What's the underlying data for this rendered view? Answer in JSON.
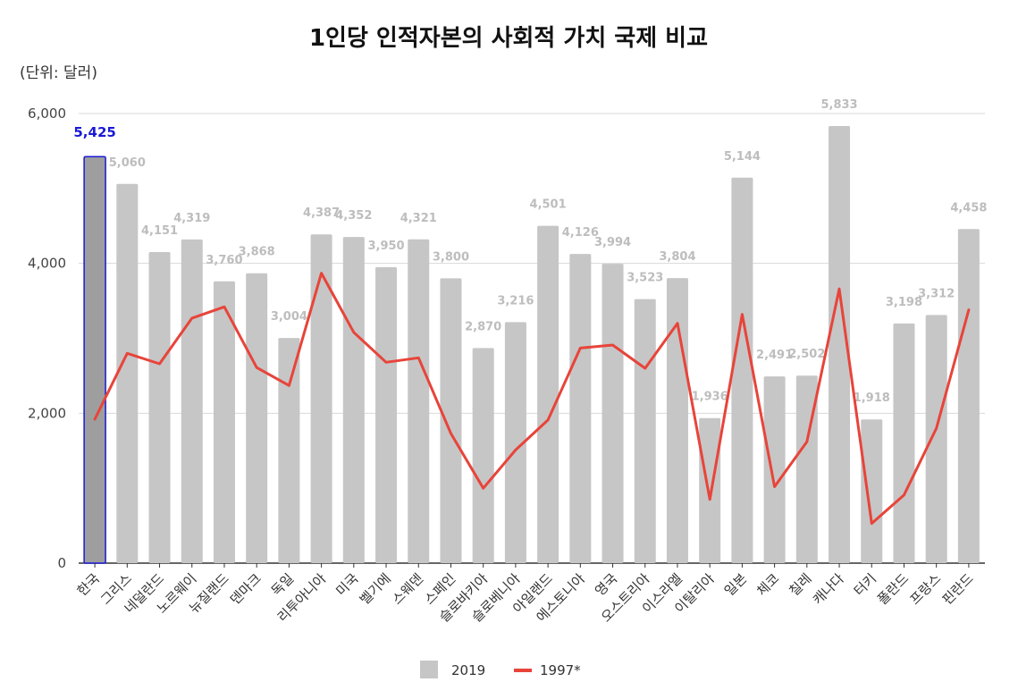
{
  "chart_data": {
    "type": "bar",
    "title": "1인당 인적자본의 사회적 가치 국제 비교",
    "unit_label": "(단위: 달러)",
    "xlabel": "",
    "ylabel": "",
    "ylim": [
      0,
      6000
    ],
    "y_ticks": [
      0,
      2000,
      4000,
      6000
    ],
    "y_tick_labels": [
      "0",
      "2,000",
      "4,000",
      "6,000"
    ],
    "grid": true,
    "legend_position": "bottom",
    "categories": [
      "한국",
      "그리스",
      "네덜란드",
      "노르웨이",
      "뉴질랜드",
      "덴마크",
      "독일",
      "리투아니아",
      "미국",
      "벨기에",
      "스웨덴",
      "스페인",
      "슬로바키아",
      "슬로베니아",
      "아일랜드",
      "에스토니아",
      "영국",
      "오스트리아",
      "이스라엘",
      "이탈리아",
      "일본",
      "체코",
      "칠레",
      "캐나다",
      "터키",
      "폴란드",
      "프랑스",
      "핀란드"
    ],
    "series": [
      {
        "name": "2019",
        "type": "bar",
        "color": "#c6c6c6",
        "values": [
          5425,
          5060,
          4151,
          4319,
          3760,
          3868,
          3004,
          4387,
          4352,
          3950,
          4321,
          3800,
          2870,
          3216,
          4501,
          4126,
          3994,
          3523,
          3804,
          1936,
          5144,
          2491,
          2502,
          5833,
          1918,
          3198,
          3312,
          4458
        ],
        "labels": [
          "5,425",
          "5,060",
          "4,151",
          "4,319",
          "3,760",
          "3,868",
          "3,004",
          "4,387",
          "4,352",
          "3,950",
          "4,321",
          "3,800",
          "2,870",
          "3,216",
          "4,501",
          "4,126",
          "3,994",
          "3,523",
          "3,804",
          "1,936",
          "5,144",
          "2,491",
          "2,502",
          "5,833",
          "1,918",
          "3,198",
          "3,312",
          "4,458"
        ]
      },
      {
        "name": "1997*",
        "type": "line",
        "color": "#e8443a",
        "values": [
          1920,
          2800,
          2660,
          3270,
          3420,
          2610,
          2370,
          3870,
          3080,
          2680,
          2740,
          1730,
          1000,
          1510,
          1910,
          2870,
          2910,
          2600,
          3200,
          850,
          3320,
          1020,
          1620,
          3660,
          530,
          910,
          1800,
          3380
        ]
      }
    ],
    "highlight": {
      "index": 0,
      "fill_color": "#9e9e9e",
      "border_color": "#1a1ad6",
      "label_color": "#1a1ad6"
    }
  }
}
